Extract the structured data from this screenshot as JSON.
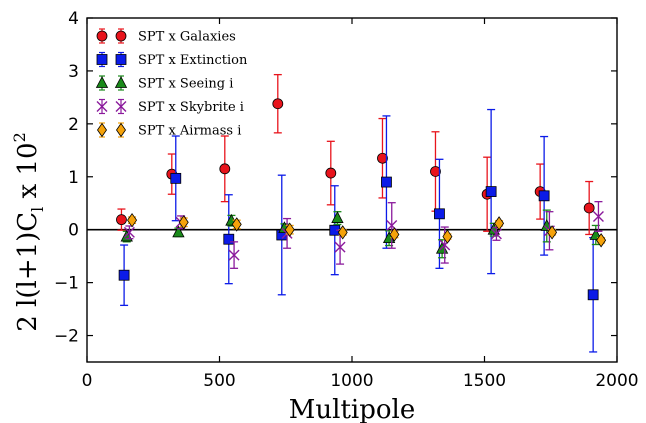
{
  "chart_data": {
    "type": "scatter",
    "xlabel": "Multipole",
    "ylabel": "2 l(l+1)C_l x 10^2",
    "ylabel_parts": {
      "lead": "2 l(l+1)C",
      "sub": "l",
      "mid": " x 10",
      "sup": "2"
    },
    "xlim": [
      0,
      2000
    ],
    "ylim": [
      -2.5,
      4
    ],
    "xticks": [
      0,
      500,
      1000,
      1500,
      2000
    ],
    "yticks": [
      -2,
      -1,
      0,
      1,
      2,
      3,
      4
    ],
    "zero_line": 0,
    "grid": false,
    "legend_position": "top-left",
    "series": [
      {
        "name": "SPT x Galaxies",
        "marker": "circle",
        "color": "#e8141c",
        "x": [
          130,
          320,
          520,
          720,
          920,
          1115,
          1315,
          1510,
          1710,
          1895
        ],
        "y": [
          0.19,
          1.05,
          1.15,
          2.38,
          1.07,
          1.35,
          1.1,
          0.67,
          0.72,
          0.41
        ],
        "yerr": [
          0.2,
          0.38,
          0.62,
          0.55,
          0.6,
          0.75,
          0.75,
          0.7,
          0.52,
          0.5
        ]
      },
      {
        "name": "SPT x Extinction",
        "marker": "square",
        "color": "#0b1be8",
        "x": [
          140,
          335,
          535,
          735,
          935,
          1130,
          1330,
          1525,
          1725,
          1910
        ],
        "y": [
          -0.86,
          0.97,
          -0.18,
          -0.1,
          -0.01,
          0.9,
          0.3,
          0.72,
          0.64,
          -1.23
        ],
        "yerr": [
          0.57,
          0.8,
          0.84,
          1.13,
          0.84,
          1.25,
          1.03,
          1.55,
          1.12,
          1.08
        ]
      },
      {
        "name": "SPT x Seeing i",
        "marker": "triangle",
        "color": "#1a8a1a",
        "x": [
          150,
          345,
          545,
          745,
          945,
          1140,
          1340,
          1535,
          1735,
          1920
        ],
        "y": [
          -0.13,
          -0.05,
          0.17,
          0.03,
          0.22,
          -0.16,
          -0.36,
          0.0,
          0.07,
          -0.1
        ],
        "yerr": [
          0.1,
          0.08,
          0.1,
          0.08,
          0.12,
          0.14,
          0.17,
          0.12,
          0.3,
          0.18
        ]
      },
      {
        "name": "SPT x Skybrite i",
        "marker": "x",
        "color": "#8b1a9c",
        "x": [
          160,
          355,
          555,
          755,
          955,
          1150,
          1350,
          1545,
          1745,
          1930
        ],
        "y": [
          -0.05,
          0.14,
          -0.48,
          -0.07,
          -0.33,
          0.08,
          -0.29,
          -0.08,
          -0.02,
          0.25
        ],
        "yerr": [
          0.12,
          0.12,
          0.25,
          0.28,
          0.32,
          0.43,
          0.34,
          0.12,
          0.36,
          0.28
        ]
      },
      {
        "name": "SPT x Airmass i",
        "marker": "diamond",
        "color": "#f5a20a",
        "x": [
          170,
          365,
          565,
          765,
          965,
          1160,
          1360,
          1555,
          1755,
          1940
        ],
        "y": [
          0.18,
          0.14,
          0.1,
          0.0,
          -0.05,
          -0.09,
          -0.13,
          0.12,
          -0.05,
          -0.2
        ],
        "yerr": [
          0.06,
          0.08,
          0.08,
          0.08,
          0.05,
          0.06,
          0.05,
          0.05,
          0.05,
          0.05
        ]
      }
    ]
  }
}
